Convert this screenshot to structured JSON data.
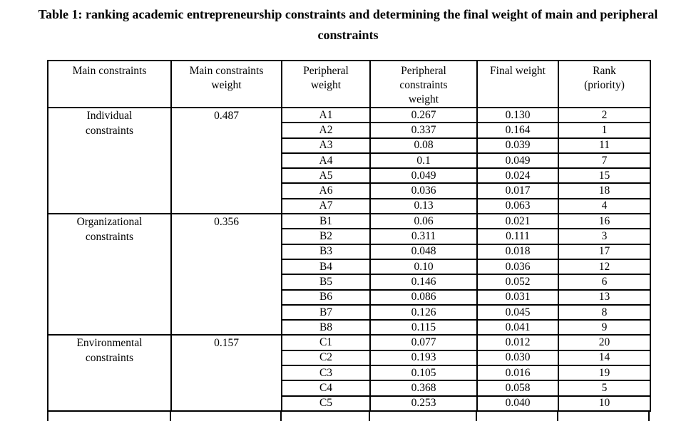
{
  "page": {
    "title": "Table 1: ranking academic entrepreneurship constraints and determining the final weight of main and peripheral constraints"
  },
  "table": {
    "headers": [
      "Main constraints",
      "Main constraints weight",
      "Peripheral weight",
      "Peripheral constraints weight",
      "Final weight",
      "Rank (priority)"
    ],
    "sections": [
      {
        "main_constraint": "Individual constraints",
        "main_weight": "0.487",
        "rows": [
          {
            "peripheral": "A1",
            "peripheral_weight": "0.267",
            "final_weight": "0.130",
            "rank": "2"
          },
          {
            "peripheral": "A2",
            "peripheral_weight": "0.337",
            "final_weight": "0.164",
            "rank": "1"
          },
          {
            "peripheral": "A3",
            "peripheral_weight": "0.08",
            "final_weight": "0.039",
            "rank": "11"
          },
          {
            "peripheral": "A4",
            "peripheral_weight": "0.1",
            "final_weight": "0.049",
            "rank": "7"
          },
          {
            "peripheral": "A5",
            "peripheral_weight": "0.049",
            "final_weight": "0.024",
            "rank": "15"
          },
          {
            "peripheral": "A6",
            "peripheral_weight": "0.036",
            "final_weight": "0.017",
            "rank": "18"
          },
          {
            "peripheral": "A7",
            "peripheral_weight": "0.13",
            "final_weight": "0.063",
            "rank": "4"
          }
        ]
      },
      {
        "main_constraint": "Organizational constraints",
        "main_weight": "0.356",
        "rows": [
          {
            "peripheral": "B1",
            "peripheral_weight": "0.06",
            "final_weight": "0.021",
            "rank": "16"
          },
          {
            "peripheral": "B2",
            "peripheral_weight": "0.311",
            "final_weight": "0.111",
            "rank": "3"
          },
          {
            "peripheral": "B3",
            "peripheral_weight": "0.048",
            "final_weight": "0.018",
            "rank": "17"
          },
          {
            "peripheral": "B4",
            "peripheral_weight": "0.10",
            "final_weight": "0.036",
            "rank": "12"
          },
          {
            "peripheral": "B5",
            "peripheral_weight": "0.146",
            "final_weight": "0.052",
            "rank": "6"
          },
          {
            "peripheral": "B6",
            "peripheral_weight": "0.086",
            "final_weight": "0.031",
            "rank": "13"
          },
          {
            "peripheral": "B7",
            "peripheral_weight": "0.126",
            "final_weight": "0.045",
            "rank": "8"
          },
          {
            "peripheral": "B8",
            "peripheral_weight": "0.115",
            "final_weight": "0.041",
            "rank": "9"
          }
        ]
      },
      {
        "main_constraint": "Environmental constraints",
        "main_weight": "0.157",
        "rows": [
          {
            "peripheral": "C1",
            "peripheral_weight": "0.077",
            "final_weight": "0.012",
            "rank": "20"
          },
          {
            "peripheral": "C2",
            "peripheral_weight": "0.193",
            "final_weight": "0.030",
            "rank": "14"
          },
          {
            "peripheral": "C3",
            "peripheral_weight": "0.105",
            "final_weight": "0.016",
            "rank": "19"
          },
          {
            "peripheral": "C4",
            "peripheral_weight": "0.368",
            "final_weight": "0.058",
            "rank": "5"
          },
          {
            "peripheral": "C5",
            "peripheral_weight": "0.253",
            "final_weight": "0.040",
            "rank": "10"
          }
        ]
      }
    ]
  }
}
